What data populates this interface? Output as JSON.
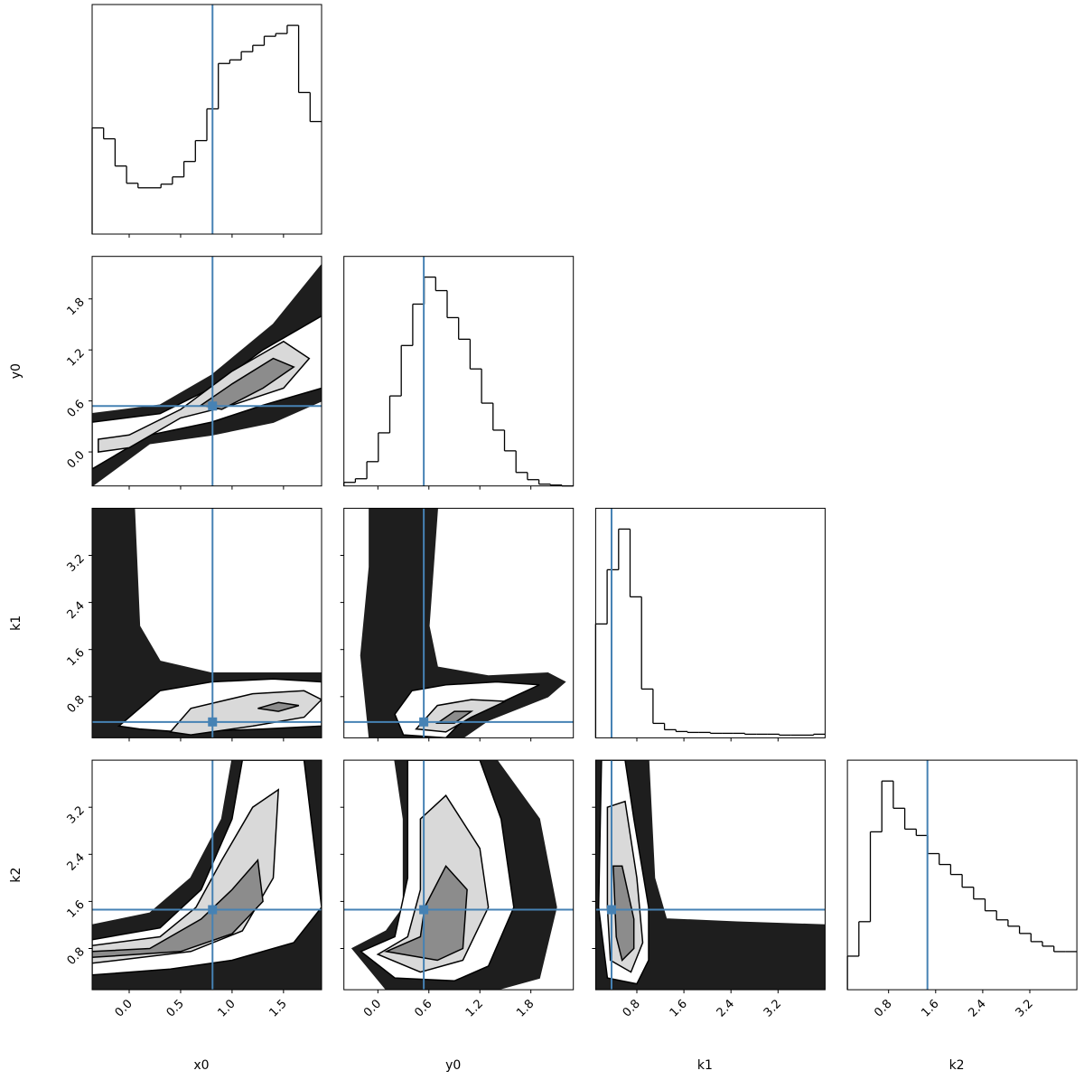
{
  "chart_data": {
    "type": "corner",
    "truth_color": "#4682b4",
    "params": [
      {
        "name": "x0",
        "lim": [
          -0.36,
          1.87
        ],
        "ticks": [
          {
            "value": 0,
            "label": "0.0"
          },
          0.5,
          {
            "value": 1,
            "label": "1.0"
          },
          1.5
        ],
        "truth": 0.81
      },
      {
        "name": "y0",
        "lim": [
          -0.4,
          2.3
        ],
        "ticks": [
          {
            "value": 0,
            "label": "0.0"
          },
          0.6,
          1.2,
          1.8
        ],
        "truth": 0.54
      },
      {
        "name": "k1",
        "lim": [
          0.1,
          4.0
        ],
        "ticks": [
          0.8,
          1.6,
          2.4,
          3.2
        ],
        "truth": 0.37
      },
      {
        "name": "k2",
        "lim": [
          0.1,
          4.0
        ],
        "ticks": [
          0.8,
          1.6,
          2.4,
          3.2
        ],
        "truth": 1.46
      }
    ],
    "histograms": [
      {
        "bins": [
          -0.36,
          -0.2485,
          -0.137,
          -0.0255,
          0.086,
          0.1975,
          0.309,
          0.4205,
          0.532,
          0.6435,
          0.755,
          0.8665,
          0.978,
          1.0895,
          1.201,
          1.3125,
          1.424,
          1.5355,
          1.647,
          1.7585,
          1.87
        ],
        "counts": [
          117,
          105,
          75,
          56,
          51,
          51,
          55,
          63,
          80,
          103,
          138,
          188,
          192,
          201,
          208,
          218,
          221,
          230,
          156,
          124
        ],
        "ylim": [
          0,
          253
        ]
      },
      {
        "bins": [
          -0.4,
          -0.265,
          -0.13,
          0.005,
          0.14,
          0.275,
          0.41,
          0.545,
          0.68,
          0.815,
          0.95,
          1.085,
          1.22,
          1.355,
          1.49,
          1.625,
          1.76,
          1.895,
          2.03,
          2.165,
          2.3
        ],
        "counts": [
          4,
          8,
          27,
          59,
          100,
          156,
          202,
          232,
          217,
          187,
          163,
          130,
          92,
          62,
          39,
          15,
          7,
          2,
          1,
          0
        ],
        "ylim": [
          0,
          255
        ]
      },
      {
        "bins": [
          0.1,
          0.295,
          0.49,
          0.685,
          0.88,
          1.075,
          1.27,
          1.465,
          1.66,
          1.855,
          2.05,
          2.245,
          2.44,
          2.635,
          2.83,
          3.025,
          3.22,
          3.415,
          3.61,
          3.805,
          4.0
        ],
        "counts": [
          126,
          186,
          231,
          156,
          54,
          16,
          9,
          7,
          6,
          6,
          5,
          5,
          5,
          4,
          4,
          4,
          3,
          3,
          3,
          4
        ],
        "ylim": [
          0,
          254
        ]
      },
      {
        "bins": [
          0.1,
          0.295,
          0.49,
          0.685,
          0.88,
          1.075,
          1.27,
          1.465,
          1.66,
          1.855,
          2.05,
          2.245,
          2.44,
          2.635,
          2.83,
          3.025,
          3.22,
          3.415,
          3.61,
          3.805,
          4.0
        ],
        "counts": [
          37,
          75,
          174,
          230,
          200,
          177,
          170,
          150,
          138,
          127,
          113,
          100,
          87,
          77,
          70,
          62,
          53,
          48,
          42,
          42
        ],
        "ylim": [
          0,
          253
        ]
      }
    ],
    "pairs": [
      {
        "cloud": {
          "x": [
            -0.36,
            0.3,
            0.8,
            1.4,
            1.87,
            1.87,
            1.4,
            0.8,
            0.2,
            -0.36
          ],
          "y": [
            0.45,
            0.55,
            0.9,
            1.5,
            2.2,
            0.6,
            0.35,
            0.2,
            0.1,
            -0.4
          ]
        },
        "contours": [
          {
            "x": [
              -0.36,
              0.3,
              0.8,
              1.3,
              1.87,
              1.87,
              1.3,
              0.8,
              0.2,
              -0.36
            ],
            "y": [
              0.35,
              0.45,
              0.75,
              1.2,
              1.6,
              0.75,
              0.55,
              0.35,
              0.2,
              -0.2
            ]
          },
          {
            "x": [
              -0.3,
              0,
              0.5,
              1.0,
              1.5,
              1.75,
              1.5,
              1.0,
              0.5,
              0,
              -0.3
            ],
            "y": [
              0.15,
              0.2,
              0.5,
              0.95,
              1.3,
              1.1,
              0.75,
              0.55,
              0.4,
              0.05,
              0
            ]
          },
          {
            "x": [
              0.7,
              1.0,
              1.4,
              1.6,
              1.3,
              0.9
            ],
            "y": [
              0.55,
              0.8,
              1.1,
              1.0,
              0.75,
              0.5
            ]
          }
        ]
      },
      {
        "cloud": {
          "x": [
            -0.36,
            0.05,
            0.1,
            0.3,
            0.8,
            1.87,
            1.87,
            -0.36
          ],
          "y": [
            4.0,
            4.0,
            2.0,
            1.4,
            1.2,
            1.2,
            0.1,
            0.1
          ]
        },
        "contours": [
          {
            "x": [
              -0.1,
              0.3,
              0.8,
              1.4,
              1.87,
              1.87,
              1.3,
              0.5,
              0.1
            ],
            "y": [
              0.3,
              0.9,
              1.05,
              1.1,
              1.05,
              0.3,
              0.25,
              0.2,
              0.25
            ]
          },
          {
            "x": [
              0.4,
              0.6,
              1.2,
              1.7,
              1.87,
              1.7,
              1.2,
              0.6
            ],
            "y": [
              0.2,
              0.6,
              0.85,
              0.9,
              0.75,
              0.45,
              0.3,
              0.15
            ]
          },
          {
            "x": [
              1.25,
              1.45,
              1.65,
              1.45
            ],
            "y": [
              0.6,
              0.7,
              0.65,
              0.55
            ]
          }
        ]
      },
      {
        "cloud": {
          "x": [
            -0.1,
            0.7,
            0.6,
            0.7,
            1.3,
            2.0,
            2.2,
            2.0,
            1.3,
            1.0,
            -0.1,
            -0.2,
            -0.1
          ],
          "y": [
            4.0,
            4.0,
            2.0,
            1.3,
            1.15,
            1.2,
            1.05,
            0.8,
            0.4,
            0.1,
            0.1,
            1.5,
            3
          ]
        },
        "contours": [
          {
            "x": [
              0.2,
              0.4,
              0.8,
              1.4,
              1.9,
              1.6,
              1.0,
              0.8,
              0.3
            ],
            "y": [
              0.5,
              0.9,
              1.0,
              1.05,
              1.0,
              0.8,
              0.4,
              0.1,
              0.15
            ]
          },
          {
            "x": [
              0.45,
              0.7,
              1.1,
              1.5,
              1.1,
              0.8
            ],
            "y": [
              0.25,
              0.65,
              0.75,
              0.72,
              0.45,
              0.2
            ]
          },
          {
            "x": [
              0.7,
              0.9,
              1.1,
              0.9
            ],
            "y": [
              0.35,
              0.55,
              0.55,
              0.35
            ]
          }
        ]
      },
      {
        "cloud": {
          "x": [
            -0.36,
            0.2,
            0.6,
            0.9,
            1.0,
            1.87,
            1.87,
            -0.36
          ],
          "y": [
            1.2,
            1.4,
            2.0,
            3.0,
            4.0,
            4.0,
            0.1,
            0.1
          ]
        },
        "contours": [
          {
            "x": [
              -0.36,
              0.3,
              0.7,
              1.0,
              1.1,
              1.7,
              1.87,
              1.6,
              1.0,
              0.4,
              -0.36
            ],
            "y": [
              0.95,
              1.15,
              1.8,
              3.0,
              4.0,
              4.0,
              1.5,
              0.9,
              0.6,
              0.45,
              0.35
            ]
          },
          {
            "x": [
              -0.36,
              0.3,
              0.65,
              0.9,
              1.2,
              1.45,
              1.4,
              1.1,
              0.6,
              -0.36
            ],
            "y": [
              0.85,
              1.0,
              1.5,
              2.3,
              3.2,
              3.5,
              2.0,
              1.1,
              0.75,
              0.55
            ]
          },
          {
            "x": [
              -0.36,
              0.2,
              0.7,
              1.0,
              1.25,
              1.3,
              1.0,
              0.5,
              -0.36
            ],
            "y": [
              0.75,
              0.8,
              1.3,
              1.8,
              2.3,
              1.6,
              1.05,
              0.75,
              0.65
            ]
          }
        ]
      },
      {
        "cloud": {
          "x": [
            0.2,
            1.4,
            1.9,
            2.1,
            1.9,
            1.4,
            0.1,
            -0.3,
            0.1,
            0.3,
            0.3
          ],
          "y": [
            4.0,
            4.0,
            3.0,
            1.5,
            0.3,
            0.1,
            0.1,
            0.8,
            1.1,
            1.5,
            3
          ]
        },
        "contours": [
          {
            "x": [
              0.35,
              1.2,
              1.45,
              1.6,
              1.3,
              0.9,
              0.2,
              -0.2,
              0.2,
              0.35
            ],
            "y": [
              4.0,
              4.0,
              3.0,
              1.5,
              0.5,
              0.25,
              0.3,
              0.75,
              1.0,
              2.0
            ]
          },
          {
            "x": [
              0.5,
              0.8,
              1.2,
              1.3,
              1.0,
              0.5,
              0.0,
              0.35,
              0.5
            ],
            "y": [
              3.0,
              3.4,
              2.5,
              1.5,
              0.6,
              0.4,
              0.7,
              1.0,
              1.8
            ]
          },
          {
            "x": [
              0.55,
              0.8,
              1.05,
              1.0,
              0.7,
              0.1,
              0.5
            ],
            "y": [
              1.5,
              2.2,
              1.8,
              0.8,
              0.6,
              0.75,
              1.0
            ]
          }
        ]
      },
      {
        "cloud": {
          "x": [
            0.1,
            1.0,
            1.1,
            1.3,
            2.5,
            4.0,
            4.0,
            0.1
          ],
          "y": [
            4.0,
            4.0,
            2.0,
            1.3,
            1.25,
            1.2,
            0.1,
            0.1
          ]
        },
        "contours": [
          {
            "x": [
              0.2,
              0.6,
              0.75,
              1.0,
              1.0,
              0.8,
              0.3,
              0.15
            ],
            "y": [
              4.0,
              4.0,
              3.0,
              1.5,
              0.6,
              0.2,
              0.3,
              1.5
            ]
          },
          {
            "x": [
              0.3,
              0.6,
              0.8,
              0.9,
              0.7,
              0.35,
              0.3
            ],
            "y": [
              3.2,
              3.3,
              2.0,
              0.9,
              0.4,
              0.6,
              1.5
            ]
          },
          {
            "x": [
              0.4,
              0.55,
              0.75,
              0.75,
              0.55,
              0.45
            ],
            "y": [
              2.2,
              2.2,
              1.3,
              0.8,
              0.6,
              1.0
            ]
          }
        ]
      }
    ]
  }
}
